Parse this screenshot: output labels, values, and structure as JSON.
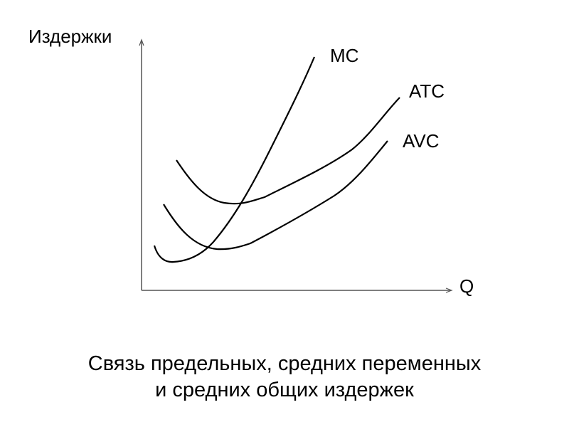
{
  "axes": {
    "y_label": "Издержки",
    "x_label": "Q"
  },
  "curves": [
    {
      "label": "MC"
    },
    {
      "label": "ATC"
    },
    {
      "label": "AVC"
    }
  ],
  "caption": [
    "Связь предельных, средних переменных",
    "и средних общих издержек"
  ]
}
